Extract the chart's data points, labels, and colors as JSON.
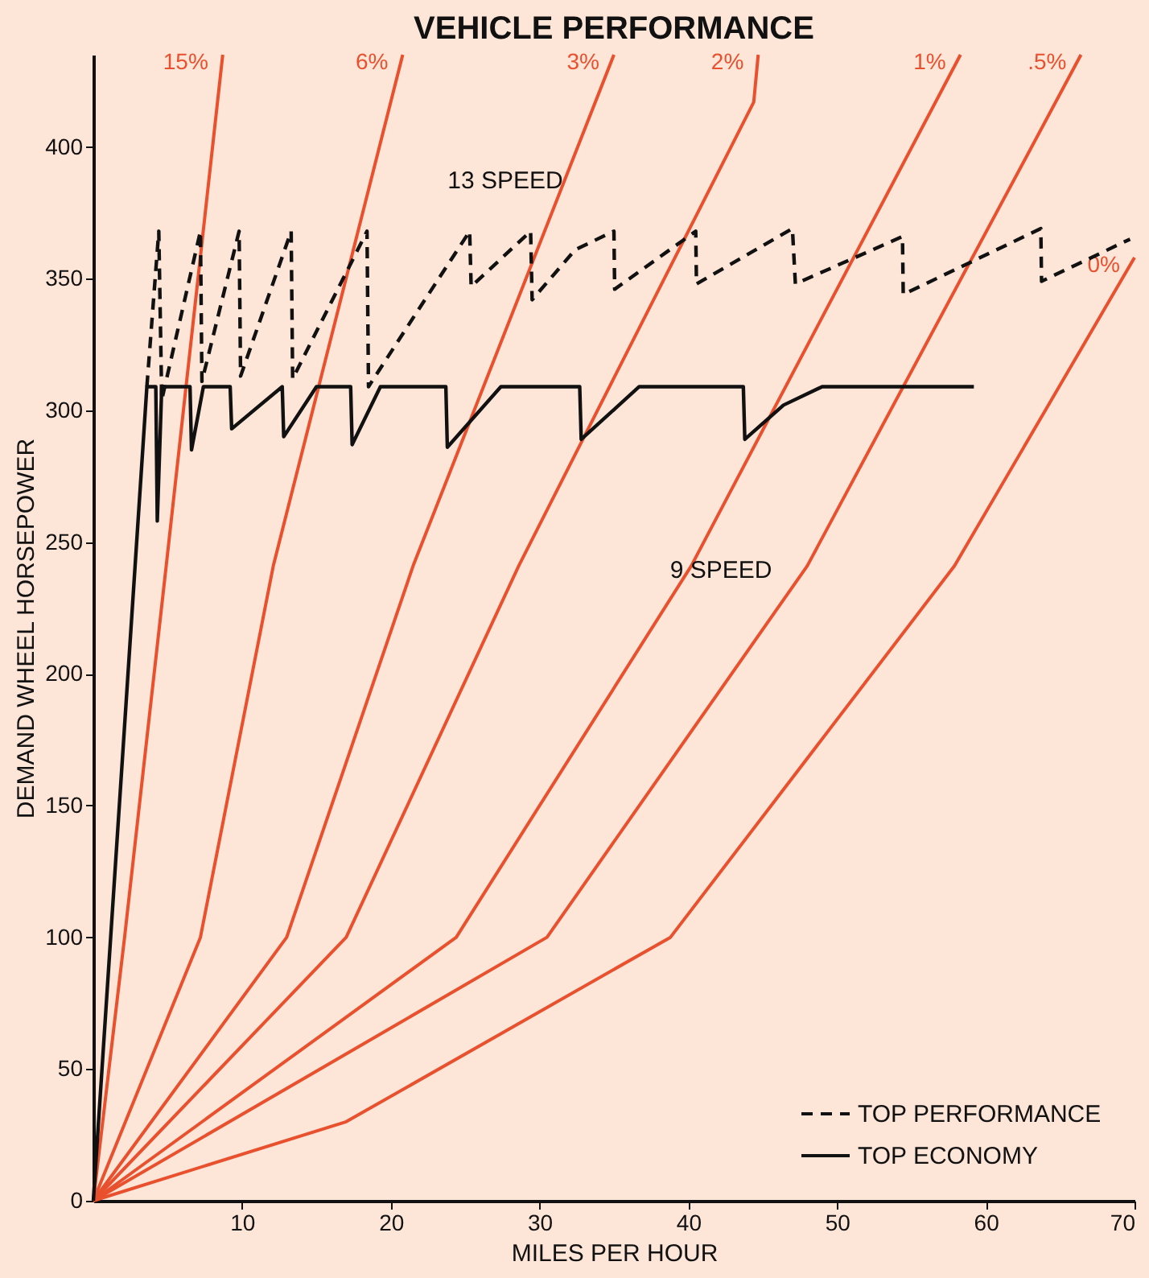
{
  "chart_data": {
    "type": "line",
    "title": "VEHICLE PERFORMANCE",
    "xlabel": "MILES PER HOUR",
    "ylabel": "DEMAND WHEEL HORSEPOWER",
    "xlim": [
      0,
      70
    ],
    "ylim": [
      0,
      435
    ],
    "xticks": [
      10,
      20,
      30,
      40,
      50,
      60,
      70
    ],
    "yticks": [
      0,
      50,
      100,
      150,
      200,
      250,
      300,
      350,
      400
    ],
    "grid": false,
    "legend": "bottom right",
    "marker": "none",
    "series": [
      {
        "name": "15%",
        "color": "#e8502e",
        "line_style": "solid",
        "x": [
          0,
          2.1,
          4.9,
          8.7
        ],
        "values": [
          0,
          100,
          241,
          435
        ]
      },
      {
        "name": "6%",
        "color": "#e8502e",
        "line_style": "solid",
        "x": [
          0,
          7.2,
          12.1,
          20.8
        ],
        "values": [
          0,
          100,
          241,
          435
        ]
      },
      {
        "name": "3%",
        "color": "#e8502e",
        "line_style": "solid",
        "x": [
          0,
          13.0,
          21.5,
          35.0
        ],
        "values": [
          0,
          100,
          241,
          435
        ]
      },
      {
        "name": "2%",
        "color": "#e8502e",
        "line_style": "solid",
        "x": [
          0,
          17.0,
          28.6,
          44.4,
          44.7
        ],
        "values": [
          0,
          100,
          241,
          417,
          435
        ]
      },
      {
        "name": "1%",
        "color": "#e8502e",
        "line_style": "solid",
        "x": [
          0,
          24.4,
          40.2,
          58.3
        ],
        "values": [
          0,
          100,
          241,
          435
        ]
      },
      {
        "name": ".5%",
        "color": "#e8502e",
        "line_style": "solid",
        "x": [
          0,
          30.5,
          48.0,
          66.4
        ],
        "values": [
          0,
          100,
          241,
          435
        ]
      },
      {
        "name": "0%",
        "color": "#e8502e",
        "line_style": "solid",
        "x": [
          0,
          17.0,
          38.8,
          57.9,
          70
        ],
        "values": [
          0,
          30,
          100,
          241,
          358
        ]
      },
      {
        "name": "TOP PERFORMANCE",
        "color": "#111111",
        "line_style": "dashed",
        "x": [
          3.6,
          4.4,
          4.6,
          7.2,
          7.3,
          9.8,
          9.9,
          13.3,
          13.4,
          18.4,
          18.5,
          21.6,
          25.3,
          25.4,
          29.4,
          29.5,
          32.4,
          35.0,
          35.05,
          40.5,
          40.55,
          47.0,
          47.2,
          54.4,
          54.45,
          63.7,
          63.75,
          69.7
        ],
        "values": [
          309,
          368,
          304,
          368,
          311,
          368,
          313,
          368,
          312,
          368,
          309,
          336,
          368,
          347,
          368,
          342,
          361,
          368,
          346,
          368,
          348,
          369,
          348,
          366,
          344,
          369,
          349,
          365
        ]
      },
      {
        "name": "TOP ECONOMY",
        "color": "#111111",
        "line_style": "solid",
        "x": [
          0,
          3.6,
          4.2,
          4.3,
          4.6,
          6.5,
          6.6,
          7.4,
          9.2,
          9.3,
          12.7,
          12.8,
          15.0,
          17.3,
          17.4,
          19.3,
          23.7,
          23.8,
          27.4,
          32.7,
          32.8,
          36.7,
          43.7,
          43.8,
          46.4,
          49.0,
          59.2
        ],
        "values": [
          0,
          309,
          309,
          258,
          309,
          309,
          285,
          309,
          309,
          293,
          309,
          290,
          309,
          309,
          287,
          309,
          309,
          286,
          309,
          309,
          289,
          309,
          309,
          289,
          302,
          309,
          309
        ]
      }
    ],
    "annotations": [
      {
        "text": "13 SPEED",
        "x": 27.7,
        "y": 363
      },
      "9 SPEED"
    ]
  }
}
